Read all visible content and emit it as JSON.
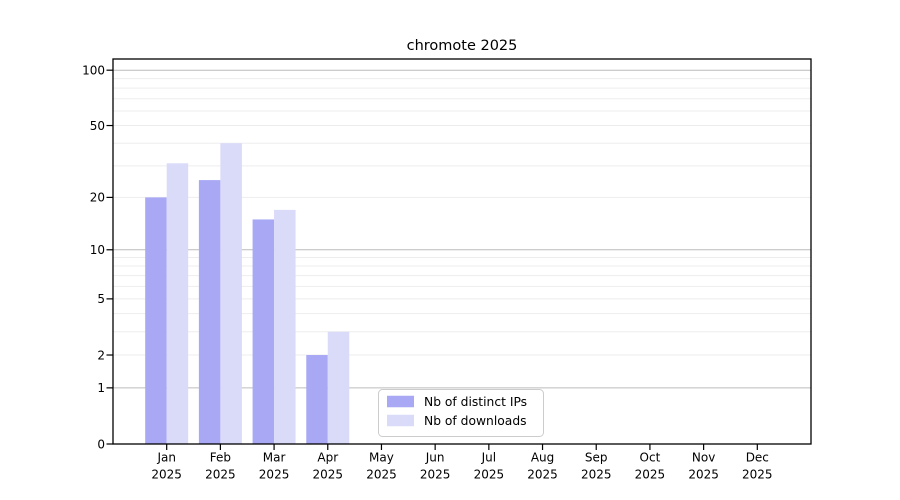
{
  "title": "chromote 2025",
  "chart_data": {
    "type": "bar",
    "title": "chromote 2025",
    "year_label": "2025",
    "categories": [
      "Jan",
      "Feb",
      "Mar",
      "Apr",
      "May",
      "Jun",
      "Jul",
      "Aug",
      "Sep",
      "Oct",
      "Nov",
      "Dec"
    ],
    "series": [
      {
        "name": "Nb of distinct IPs",
        "color": "#a8a8f5",
        "values": [
          20,
          25,
          15,
          2,
          0,
          0,
          0,
          0,
          0,
          0,
          0,
          0
        ]
      },
      {
        "name": "Nb of downloads",
        "color": "#dadaf9",
        "values": [
          31,
          40,
          17,
          3,
          0,
          0,
          0,
          0,
          0,
          0,
          0,
          0
        ]
      }
    ],
    "yscale": "log1p",
    "yticks": [
      0,
      1,
      2,
      5,
      10,
      20,
      50,
      100
    ],
    "ylim": [
      0,
      115
    ],
    "xlabel": "",
    "ylabel": "",
    "grid": {
      "major_lines": [
        1,
        10,
        100
      ],
      "minor_lines": [
        2,
        3,
        4,
        5,
        6,
        7,
        8,
        9,
        20,
        30,
        40,
        50,
        60,
        70,
        80,
        90
      ],
      "major_color": "#bcbcbc",
      "minor_color": "#ededed"
    },
    "legend": {
      "position": "lower-center",
      "labels": [
        "Nb of distinct IPs",
        "Nb of downloads"
      ],
      "border_color": "#cccccc",
      "background": "#ffffff"
    },
    "frame_color": "#000000"
  }
}
